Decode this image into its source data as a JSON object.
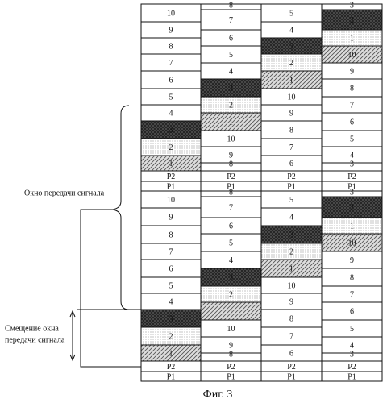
{
  "columns": [
    {
      "cells": [
        {
          "label": "10"
        },
        {
          "label": "9"
        },
        {
          "label": "8"
        },
        {
          "label": "7"
        },
        {
          "label": "6"
        },
        {
          "label": "5"
        },
        {
          "label": "4"
        },
        {
          "label": "3",
          "fill": "dark"
        },
        {
          "label": "2",
          "fill": "dots"
        },
        {
          "label": "1",
          "fill": "hatch"
        },
        {
          "label": "P2"
        },
        {
          "label": "P1"
        },
        {
          "label": "10"
        },
        {
          "label": "9"
        },
        {
          "label": "8"
        },
        {
          "label": "7"
        },
        {
          "label": "6"
        },
        {
          "label": "5"
        },
        {
          "label": "4"
        },
        {
          "label": "3",
          "fill": "dark"
        },
        {
          "label": "2",
          "fill": "dots"
        },
        {
          "label": "1",
          "fill": "hatch"
        },
        {
          "label": "P2"
        },
        {
          "label": "P1"
        }
      ]
    },
    {
      "cells": [
        {
          "label": "8"
        },
        {
          "label": "7"
        },
        {
          "label": "6"
        },
        {
          "label": "5"
        },
        {
          "label": "4"
        },
        {
          "label": "3",
          "fill": "dark"
        },
        {
          "label": "2",
          "fill": "dots"
        },
        {
          "label": "1",
          "fill": "hatch"
        },
        {
          "label": "10"
        },
        {
          "label": "9"
        },
        {
          "label": "8"
        },
        {
          "label": "P2"
        },
        {
          "label": "P1"
        },
        {
          "label": "8"
        },
        {
          "label": "7"
        },
        {
          "label": "6"
        },
        {
          "label": "5"
        },
        {
          "label": "4"
        },
        {
          "label": "3",
          "fill": "dark"
        },
        {
          "label": "2",
          "fill": "dots"
        },
        {
          "label": "1",
          "fill": "hatch"
        },
        {
          "label": "10"
        },
        {
          "label": "9"
        },
        {
          "label": "8"
        },
        {
          "label": "P2"
        },
        {
          "label": "P1"
        }
      ]
    },
    {
      "cells": [
        {
          "label": "5"
        },
        {
          "label": "4"
        },
        {
          "label": "3",
          "fill": "dark"
        },
        {
          "label": "2",
          "fill": "dots"
        },
        {
          "label": "1",
          "fill": "hatch"
        },
        {
          "label": "10"
        },
        {
          "label": "9"
        },
        {
          "label": "8"
        },
        {
          "label": "7"
        },
        {
          "label": "6"
        },
        {
          "label": "P2"
        },
        {
          "label": "P1"
        },
        {
          "label": "5"
        },
        {
          "label": "4"
        },
        {
          "label": "3",
          "fill": "dark"
        },
        {
          "label": "2",
          "fill": "dots"
        },
        {
          "label": "1",
          "fill": "hatch"
        },
        {
          "label": "10"
        },
        {
          "label": "9"
        },
        {
          "label": "8"
        },
        {
          "label": "7"
        },
        {
          "label": "6"
        },
        {
          "label": "P2"
        },
        {
          "label": "P1"
        }
      ]
    },
    {
      "cells": [
        {
          "label": "3"
        },
        {
          "label": "2",
          "fill": "dark"
        },
        {
          "label": "1",
          "fill": "dots"
        },
        {
          "label": "10",
          "fill": "hatch"
        },
        {
          "label": "9"
        },
        {
          "label": "8"
        },
        {
          "label": "7"
        },
        {
          "label": "6"
        },
        {
          "label": "5"
        },
        {
          "label": "4"
        },
        {
          "label": "3"
        },
        {
          "label": "P2"
        },
        {
          "label": "P1"
        },
        {
          "label": "3"
        },
        {
          "label": "2",
          "fill": "dark"
        },
        {
          "label": "1",
          "fill": "dots"
        },
        {
          "label": "10",
          "fill": "hatch"
        },
        {
          "label": "9"
        },
        {
          "label": "8"
        },
        {
          "label": "7"
        },
        {
          "label": "6"
        },
        {
          "label": "5"
        },
        {
          "label": "4"
        },
        {
          "label": "3"
        },
        {
          "label": "P2"
        },
        {
          "label": "P1"
        }
      ]
    }
  ],
  "window_label": "Окно передачи сигнала",
  "offset_label": [
    "Смещение окна",
    "передачи сигнала"
  ],
  "caption": "Фиг. 3"
}
